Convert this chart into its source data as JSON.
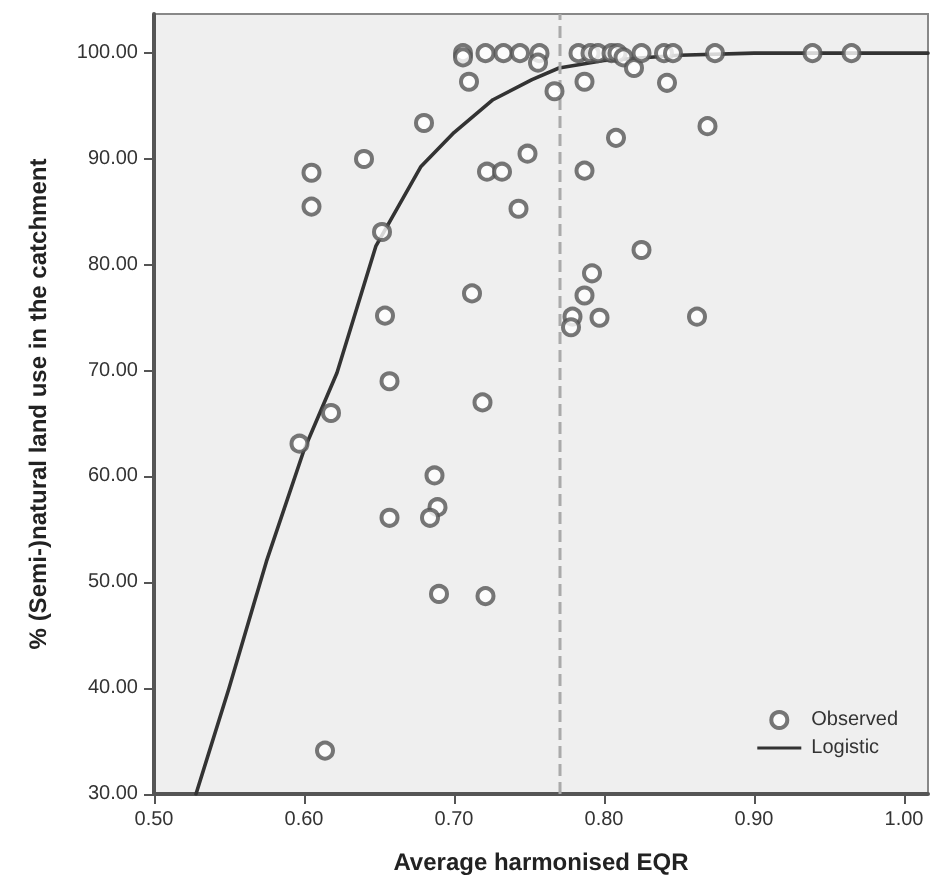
{
  "chart_data": {
    "type": "scatter",
    "xlabel": "Average harmonised EQR",
    "ylabel": "% (Semi-)natural land use in the catchment",
    "xlim": [
      0.5,
      1.016
    ],
    "ylim": [
      30,
      103.7
    ],
    "xticks": [
      {
        "value": 0.5,
        "label": "0.50"
      },
      {
        "value": 0.6,
        "label": "0.60"
      },
      {
        "value": 0.7,
        "label": "0.70"
      },
      {
        "value": 0.8,
        "label": "0.80"
      },
      {
        "value": 0.9,
        "label": "0.90"
      },
      {
        "value": 1.0,
        "label": "1.00"
      }
    ],
    "yticks": [
      {
        "value": 30,
        "label": "30.00"
      },
      {
        "value": 40,
        "label": "40.00"
      },
      {
        "value": 50,
        "label": "50.00"
      },
      {
        "value": 60,
        "label": "60.00"
      },
      {
        "value": 70,
        "label": "70.00"
      },
      {
        "value": 80,
        "label": "80.00"
      },
      {
        "value": 90,
        "label": "90.00"
      },
      {
        "value": 100,
        "label": "100.00"
      }
    ],
    "grid": false,
    "legend": "bottom right",
    "ref_lines": [
      {
        "axis": "x",
        "value": 0.77,
        "color": "#aaaaaa",
        "line_style": "dashed"
      }
    ],
    "series": [
      {
        "name": "Observed",
        "marker": "circle",
        "color": "#555555",
        "x": [
          0.706,
          0.706,
          0.721,
          0.733,
          0.744,
          0.71,
          0.68,
          0.64,
          0.605,
          0.605,
          0.652,
          0.722,
          0.732,
          0.749,
          0.743,
          0.712,
          0.654,
          0.657,
          0.757,
          0.756,
          0.767,
          0.783,
          0.791,
          0.796,
          0.805,
          0.809,
          0.813,
          0.82,
          0.825,
          0.84,
          0.846,
          0.874,
          0.939,
          0.965,
          0.787,
          0.842,
          0.808,
          0.869,
          0.787,
          0.825,
          0.792,
          0.787,
          0.779,
          0.778,
          0.797,
          0.862,
          0.618,
          0.719,
          0.597,
          0.687,
          0.689,
          0.684,
          0.657,
          0.69,
          0.721,
          0.614
        ],
        "values": [
          100,
          99.6,
          100,
          100,
          100,
          97.3,
          93.4,
          90,
          88.7,
          85.5,
          83.1,
          88.8,
          88.8,
          90.5,
          85.3,
          77.3,
          75.2,
          69.0,
          100,
          99.1,
          96.4,
          100,
          100,
          100,
          100,
          100,
          99.6,
          98.6,
          100,
          100,
          100,
          100,
          100,
          100,
          97.3,
          97.2,
          92.0,
          93.1,
          88.9,
          81.4,
          79.2,
          77.1,
          75.1,
          74.1,
          75.0,
          75.1,
          66.0,
          67.0,
          63.1,
          60.1,
          57.1,
          56.1,
          56.1,
          48.9,
          48.7,
          34.1
        ]
      },
      {
        "name": "Logistic",
        "type": "line",
        "marker": "none",
        "line_style": "solid",
        "color": "#333333",
        "x": [
          0.528,
          0.55,
          0.575,
          0.6,
          0.622,
          0.648,
          0.678,
          0.7,
          0.726,
          0.752,
          0.77,
          0.8,
          0.85,
          0.9,
          1.016
        ],
        "values": [
          30,
          40,
          52,
          62.5,
          69.8,
          81.8,
          89.3,
          92.5,
          95.6,
          97.5,
          98.6,
          99.3,
          99.8,
          100,
          100
        ]
      }
    ]
  }
}
